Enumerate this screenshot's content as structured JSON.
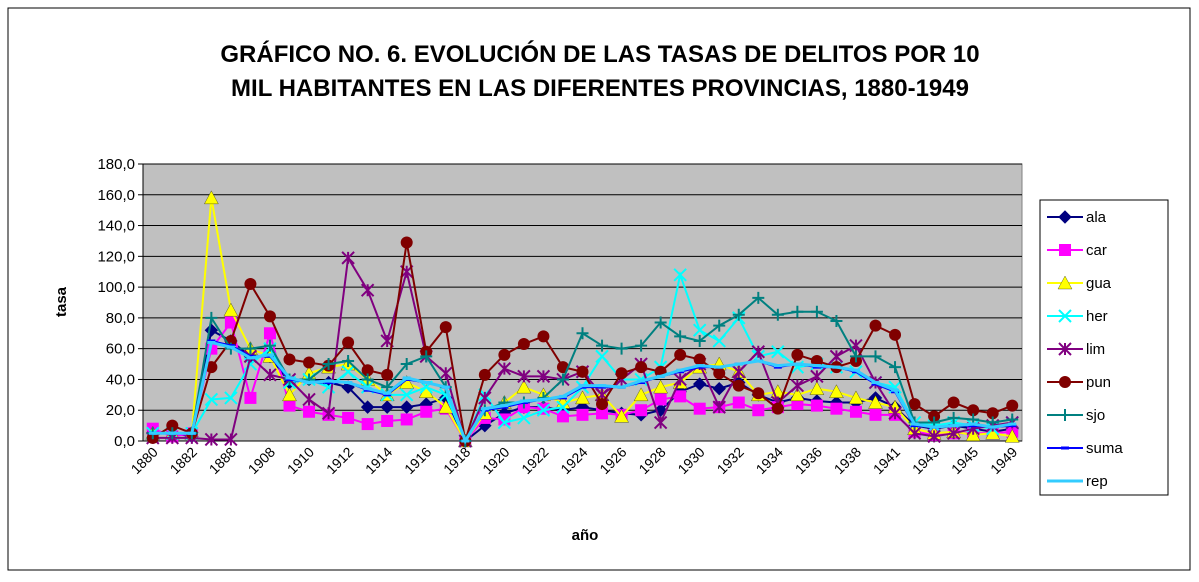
{
  "chart_data": {
    "type": "line",
    "title": [
      "GRÁFICO NO. 6.  EVOLUCIÓN DE LAS TASAS DE DELITOS POR 10",
      "MIL HABITANTES EN LAS DIFERENTES PROVINCIAS, 1880-1949"
    ],
    "x_label": "año",
    "y_label": "tasa",
    "categories": [
      "1880",
      null,
      "1882",
      null,
      "1888",
      null,
      "1908",
      null,
      "1910",
      null,
      "1912",
      null,
      "1914",
      null,
      "1916",
      null,
      "1918",
      null,
      "1920",
      null,
      "1922",
      null,
      "1924",
      null,
      "1926",
      null,
      "1928",
      null,
      "1930",
      null,
      "1932",
      null,
      "1934",
      null,
      "1936",
      null,
      "1938",
      null,
      "1941",
      null,
      "1943",
      null,
      "1945",
      null,
      "1949"
    ],
    "ylim": [
      0,
      180
    ],
    "yticks": [
      {
        "value": 0,
        "label": "0,0"
      },
      {
        "value": 20,
        "label": "20,0"
      },
      {
        "value": 40,
        "label": "40,0"
      },
      {
        "value": 60,
        "label": "60,0"
      },
      {
        "value": 80,
        "label": "80,0"
      },
      {
        "value": 100,
        "label": "100,0"
      },
      {
        "value": 120,
        "label": "120,0"
      },
      {
        "value": 140,
        "label": "140,0"
      },
      {
        "value": 160,
        "label": "160,0"
      },
      {
        "value": 180,
        "label": "180,0"
      }
    ],
    "grid": true,
    "legend": "right",
    "series": [
      {
        "name": "ala",
        "color": "#000080",
        "marker": "diamond",
        "values": [
          5,
          5,
          3,
          72,
          65,
          55,
          55,
          38,
          40,
          38,
          35,
          22,
          22,
          22,
          24,
          28,
          0,
          10,
          18,
          22,
          22,
          20,
          22,
          20,
          18,
          17,
          20,
          32,
          37,
          34,
          38,
          30,
          25,
          28,
          26,
          25,
          25,
          28,
          22,
          10,
          8,
          10,
          8,
          6,
          8
        ]
      },
      {
        "name": "car",
        "color": "#ff00ff",
        "marker": "square",
        "values": [
          8,
          3,
          5,
          60,
          77,
          28,
          70,
          23,
          19,
          17,
          15,
          11,
          13,
          14,
          19,
          21,
          0,
          15,
          14,
          22,
          21,
          16,
          17,
          18,
          17,
          20,
          27,
          29,
          21,
          22,
          25,
          20,
          22,
          24,
          23,
          21,
          19,
          17,
          17,
          6,
          4,
          5,
          5,
          5,
          6
        ]
      },
      {
        "name": "gua",
        "color": "#ffff00",
        "marker": "triangle",
        "values": [
          5,
          5,
          5,
          158,
          85,
          60,
          55,
          30,
          44,
          48,
          50,
          40,
          30,
          38,
          32,
          22,
          0,
          18,
          25,
          35,
          30,
          25,
          28,
          30,
          16,
          30,
          35,
          38,
          48,
          50,
          45,
          30,
          32,
          30,
          34,
          32,
          28,
          25,
          22,
          8,
          5,
          6,
          4,
          5,
          3
        ]
      },
      {
        "name": "her",
        "color": "#00ffff",
        "marker": "x",
        "values": [
          5,
          5,
          5,
          27,
          28,
          50,
          60,
          38,
          40,
          35,
          45,
          35,
          30,
          30,
          35,
          30,
          0,
          30,
          12,
          15,
          20,
          22,
          35,
          55,
          40,
          40,
          48,
          108,
          72,
          65,
          80,
          55,
          58,
          48,
          50,
          48,
          45,
          38,
          35,
          12,
          10,
          12,
          10,
          8,
          12
        ]
      },
      {
        "name": "lim",
        "color": "#800080",
        "marker": "star",
        "values": [
          2,
          2,
          2,
          1,
          1,
          55,
          43,
          40,
          27,
          18,
          119,
          98,
          65,
          110,
          55,
          44,
          0,
          28,
          47,
          42,
          42,
          40,
          45,
          30,
          40,
          50,
          12,
          40,
          50,
          22,
          45,
          58,
          25,
          36,
          42,
          55,
          62,
          38,
          18,
          5,
          3,
          5,
          8,
          10,
          12
        ]
      },
      {
        "name": "pun",
        "color": "#800000",
        "marker": "circle",
        "values": [
          2,
          10,
          5,
          48,
          65,
          102,
          81,
          53,
          51,
          49,
          64,
          46,
          43,
          129,
          58,
          74,
          0,
          43,
          56,
          63,
          68,
          48,
          45,
          24,
          44,
          48,
          45,
          56,
          53,
          44,
          36,
          31,
          21,
          56,
          52,
          48,
          52,
          75,
          69,
          24,
          16,
          25,
          20,
          18,
          23
        ]
      },
      {
        "name": "sjo",
        "color": "#008080",
        "marker": "plus",
        "values": [
          5,
          5,
          5,
          80,
          60,
          60,
          62,
          40,
          40,
          50,
          52,
          40,
          35,
          50,
          55,
          35,
          0,
          20,
          25,
          25,
          28,
          40,
          70,
          62,
          60,
          62,
          77,
          68,
          65,
          75,
          82,
          93,
          82,
          84,
          84,
          78,
          55,
          55,
          48,
          12,
          12,
          15,
          14,
          12,
          14
        ]
      },
      {
        "name": "suma",
        "color": "#0000ff",
        "marker": "dash",
        "values": [
          5,
          5,
          5,
          65,
          62,
          55,
          55,
          40,
          38,
          38,
          38,
          33,
          30,
          40,
          38,
          35,
          0,
          20,
          22,
          25,
          27,
          28,
          35,
          35,
          35,
          38,
          42,
          45,
          48,
          48,
          50,
          52,
          48,
          50,
          48,
          48,
          45,
          37,
          32,
          10,
          9,
          10,
          10,
          9,
          10
        ]
      },
      {
        "name": "rep",
        "color": "#33ccff",
        "marker": "dash",
        "values": [
          5,
          5,
          5,
          64,
          61,
          54,
          56,
          41,
          38,
          39,
          38,
          34,
          31,
          41,
          38,
          35,
          0,
          21,
          23,
          26,
          27,
          29,
          36,
          36,
          35,
          39,
          42,
          46,
          49,
          48,
          50,
          52,
          49,
          50,
          49,
          48,
          46,
          38,
          33,
          11,
          9,
          10,
          11,
          9,
          11
        ]
      }
    ]
  }
}
